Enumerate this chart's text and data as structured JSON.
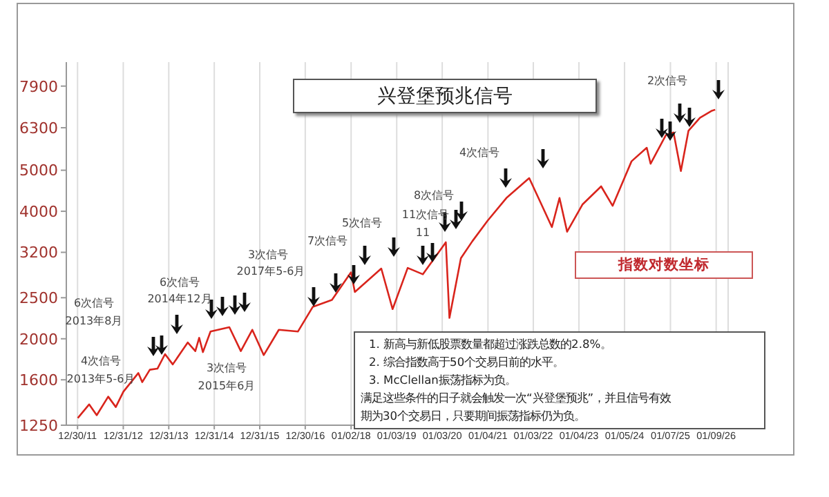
{
  "chart_data": {
    "type": "line",
    "title": "兴登堡预兆信号",
    "log": true,
    "grid": "x",
    "xlim": [
      "2011-10-01",
      "2026-04-15"
    ],
    "xticks": [
      {
        "value": "2011-12-30",
        "label": "12/30/11"
      },
      {
        "value": "2012-12-31",
        "label": "12/31/12"
      },
      {
        "value": "2013-12-31",
        "label": "12/31/13"
      },
      {
        "value": "2014-12-31",
        "label": "12/31/14"
      },
      {
        "value": "2015-12-31",
        "label": "12/31/15"
      },
      {
        "value": "2016-12-30",
        "label": "12/30/16"
      },
      {
        "value": "2018-01-02",
        "label": "01/02/18"
      },
      {
        "value": "2019-01-03",
        "label": "01/03/19"
      },
      {
        "value": "2020-01-03",
        "label": "01/03/20"
      },
      {
        "value": "2021-01-04",
        "label": "01/04/21"
      },
      {
        "value": "2022-01-03",
        "label": "01/03/22"
      },
      {
        "value": "2023-01-04",
        "label": "01/04/23"
      },
      {
        "value": "2024-01-05",
        "label": "01/05/24"
      },
      {
        "value": "2025-01-07",
        "label": "01/07/25"
      },
      {
        "value": "2026-01-09",
        "label": "01/09/26"
      }
    ],
    "ylim": [
      1250,
      9000
    ],
    "yticks": [
      1250,
      1600,
      2000,
      2500,
      3200,
      4000,
      5000,
      6300,
      7900
    ],
    "x": [
      "2012-01",
      "2012-04",
      "2012-06",
      "2012-09",
      "2012-11",
      "2013-01",
      "2013-05",
      "2013-06",
      "2013-08",
      "2013-10",
      "2013-12",
      "2014-02",
      "2014-06",
      "2014-08",
      "2014-09",
      "2014-10",
      "2014-12",
      "2015-05",
      "2015-08",
      "2015-11",
      "2016-02",
      "2016-06",
      "2016-11",
      "2017-03",
      "2017-08",
      "2018-01",
      "2018-02",
      "2018-09",
      "2018-12",
      "2019-04",
      "2019-08",
      "2020-02",
      "2020-03",
      "2020-06",
      "2020-09",
      "2021-01",
      "2021-06",
      "2021-12",
      "2022-03",
      "2022-06",
      "2022-08",
      "2022-10",
      "2023-02",
      "2023-07",
      "2023-10",
      "2024-03",
      "2024-07",
      "2024-08",
      "2024-12",
      "2025-02",
      "2025-04",
      "2025-06",
      "2025-09",
      "2025-12",
      "2026-01"
    ],
    "series": [
      {
        "color": "#d9241c",
        "values": [
          1300,
          1400,
          1320,
          1460,
          1380,
          1500,
          1660,
          1580,
          1690,
          1700,
          1840,
          1740,
          1960,
          1870,
          2010,
          1860,
          2080,
          2130,
          1870,
          2100,
          1830,
          2100,
          2080,
          2380,
          2470,
          2870,
          2580,
          2930,
          2350,
          2940,
          2840,
          3380,
          2240,
          3100,
          3400,
          3800,
          4300,
          4790,
          4200,
          3670,
          4300,
          3580,
          4150,
          4580,
          4120,
          5250,
          5650,
          5180,
          6050,
          6140,
          4980,
          6200,
          6650,
          6900,
          6950
        ]
      }
    ],
    "annotations": [
      "6次信号",
      "2013年8月",
      "4次信号",
      "2013年5-6月",
      "6次信号",
      "2014年12月",
      "3次信号",
      "2015年6月",
      "3次信号",
      "2017年5-6月",
      "7次信号",
      "5次信号",
      "11次信号",
      "11",
      "8次信号",
      "4次信号",
      "2次信号",
      "指数对数坐标",
      "1. 新高与新低股票数量都超过涨跌总数的2.8%。",
      "2. 综合指数高于50个交易日前的水平。",
      "3. McClellan振荡指标为负。",
      "满足这些条件的日子就会触发一次“兴登堡预兆”，并且信号有效",
      "期为30个交易日，只要期间振荡指标仍为负。"
    ]
  }
}
